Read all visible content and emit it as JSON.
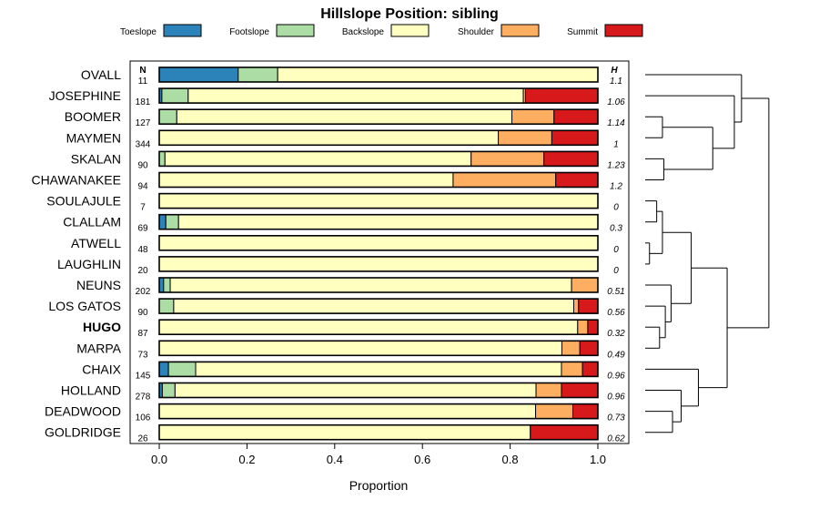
{
  "chart_data": {
    "type": "bar",
    "orientation": "horizontal",
    "stacked": true,
    "title": "Hillslope Position: sibling",
    "xlabel": "Proportion",
    "xlim": [
      0,
      1
    ],
    "xticks": [
      "0.0",
      "0.2",
      "0.4",
      "0.6",
      "0.8",
      "1.0"
    ],
    "n_header": "N",
    "h_header": "H",
    "legend_position": "top",
    "highlight": "HUGO",
    "series": [
      {
        "name": "Toeslope",
        "color": "#2b83ba"
      },
      {
        "name": "Footslope",
        "color": "#abdda4"
      },
      {
        "name": "Backslope",
        "color": "#ffffbf"
      },
      {
        "name": "Shoulder",
        "color": "#fdae61"
      },
      {
        "name": "Summit",
        "color": "#d7191c"
      }
    ],
    "categories": [
      {
        "name": "OVALL",
        "n": "11",
        "h": "1.1",
        "values": [
          0.18,
          0.09,
          0.73,
          0,
          0
        ]
      },
      {
        "name": "JOSEPHINE",
        "n": "181",
        "h": "1.06",
        "values": [
          0.006,
          0.06,
          0.764,
          0.005,
          0.165
        ]
      },
      {
        "name": "BOOMER",
        "n": "127",
        "h": "1.14",
        "values": [
          0,
          0.04,
          0.764,
          0.096,
          0.1
        ]
      },
      {
        "name": "MAYMEN",
        "n": "344",
        "h": "1",
        "values": [
          0,
          0,
          0.773,
          0.122,
          0.105
        ]
      },
      {
        "name": "SKALAN",
        "n": "90",
        "h": "1.23",
        "values": [
          0,
          0.013,
          0.698,
          0.166,
          0.123
        ]
      },
      {
        "name": "CHAWANAKEE",
        "n": "94",
        "h": "1.2",
        "values": [
          0,
          0,
          0.67,
          0.234,
          0.096
        ]
      },
      {
        "name": "SOULAJULE",
        "n": "7",
        "h": "0",
        "values": [
          0,
          0,
          1,
          0,
          0
        ]
      },
      {
        "name": "CLALLAM",
        "n": "69",
        "h": "0.3",
        "values": [
          0.015,
          0.029,
          0.956,
          0,
          0
        ]
      },
      {
        "name": "ATWELL",
        "n": "48",
        "h": "0",
        "values": [
          0,
          0,
          1,
          0,
          0
        ]
      },
      {
        "name": "LAUGHLIN",
        "n": "20",
        "h": "0",
        "values": [
          0,
          0,
          1,
          0,
          0
        ]
      },
      {
        "name": "NEUNS",
        "n": "202",
        "h": "0.51",
        "values": [
          0.01,
          0.015,
          0.915,
          0.06,
          0
        ]
      },
      {
        "name": "LOS GATOS",
        "n": "90",
        "h": "0.56",
        "values": [
          0,
          0.033,
          0.912,
          0.011,
          0.044
        ]
      },
      {
        "name": "HUGO",
        "n": "87",
        "h": "0.32",
        "values": [
          0,
          0,
          0.954,
          0.023,
          0.023
        ]
      },
      {
        "name": "MARPA",
        "n": "73",
        "h": "0.49",
        "values": [
          0,
          0,
          0.918,
          0.041,
          0.041
        ]
      },
      {
        "name": "CHAIX",
        "n": "145",
        "h": "0.96",
        "values": [
          0.021,
          0.062,
          0.834,
          0.048,
          0.035
        ]
      },
      {
        "name": "HOLLAND",
        "n": "278",
        "h": "0.96",
        "values": [
          0.007,
          0.029,
          0.823,
          0.058,
          0.083
        ]
      },
      {
        "name": "DEADWOOD",
        "n": "106",
        "h": "0.73",
        "values": [
          0,
          0,
          0.858,
          0.085,
          0.057
        ]
      },
      {
        "name": "GOLDRIDGE",
        "n": "26",
        "h": "0.62",
        "values": [
          0,
          0,
          0.846,
          0,
          0.154
        ]
      }
    ],
    "dendrogram": {
      "leaves": [
        "OVALL",
        "JOSEPHINE",
        "BOOMER",
        "MAYMEN",
        "SKALAN",
        "CHAWANAKEE",
        "SOULAJULE",
        "CLALLAM",
        "ATWELL",
        "LAUGHLIN",
        "NEUNS",
        "LOS GATOS",
        "HUGO",
        "MARPA",
        "CHAIX",
        "HOLLAND",
        "DEADWOOD",
        "GOLDRIDGE"
      ],
      "merges": [
        [
          8,
          9,
          0.03
        ],
        [
          6,
          7,
          0.08
        ],
        [
          100,
          101,
          0.12
        ],
        [
          12,
          13,
          0.1
        ],
        [
          11,
          103,
          0.14
        ],
        [
          10,
          104,
          0.18
        ],
        [
          102,
          105,
          0.32
        ],
        [
          16,
          17,
          0.19
        ],
        [
          15,
          107,
          0.25
        ],
        [
          14,
          108,
          0.37
        ],
        [
          106,
          109,
          0.57
        ],
        [
          2,
          3,
          0.12
        ],
        [
          4,
          5,
          0.13
        ],
        [
          111,
          112,
          0.47
        ],
        [
          1,
          113,
          0.62
        ],
        [
          0,
          114,
          0.67
        ],
        [
          110,
          115,
          0.86
        ]
      ]
    }
  }
}
